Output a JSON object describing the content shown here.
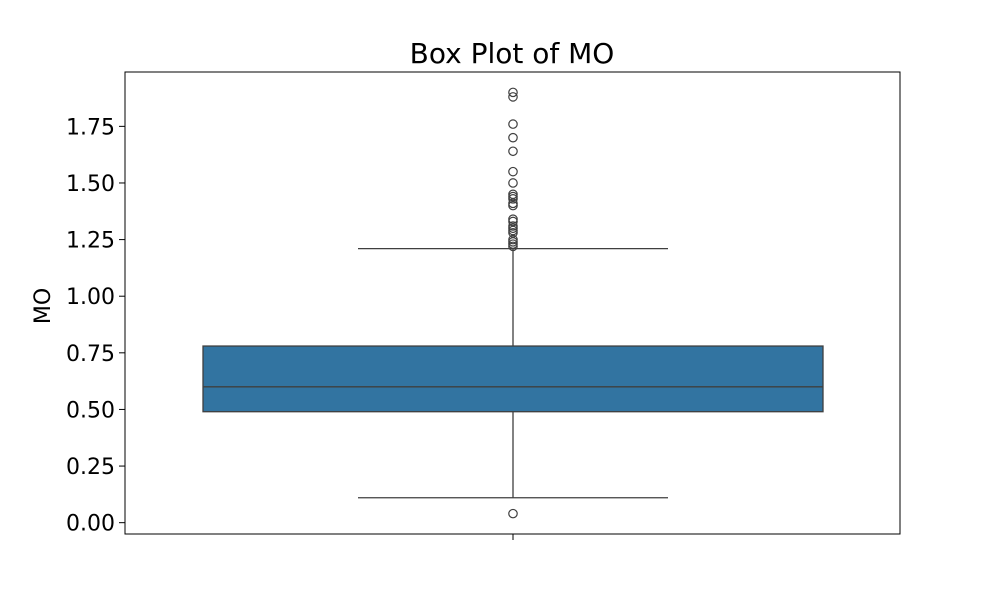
{
  "chart_data": {
    "type": "box",
    "title": "Box Plot of MO",
    "xlabel": "",
    "ylabel": "MO",
    "ylim": [
      -0.05,
      1.99
    ],
    "yticks": [
      0.0,
      0.25,
      0.5,
      0.75,
      1.0,
      1.25,
      1.5,
      1.75
    ],
    "ytick_labels": [
      "0.00",
      "0.25",
      "0.50",
      "0.75",
      "1.00",
      "1.25",
      "1.50",
      "1.75"
    ],
    "grid": false,
    "box": {
      "q1": 0.49,
      "median": 0.6,
      "q3": 0.78,
      "whisker_low": 0.11,
      "whisker_high": 1.21,
      "color": "#3274a1",
      "edge_color": "#3f3f3f"
    },
    "outliers": [
      0.04,
      1.22,
      1.23,
      1.24,
      1.25,
      1.28,
      1.29,
      1.3,
      1.31,
      1.33,
      1.34,
      1.4,
      1.41,
      1.43,
      1.44,
      1.45,
      1.5,
      1.55,
      1.64,
      1.7,
      1.76,
      1.88,
      1.9
    ]
  }
}
